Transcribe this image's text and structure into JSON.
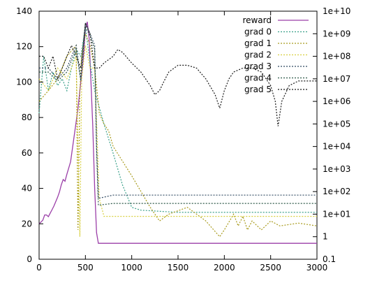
{
  "chart_data": {
    "type": "line",
    "grid": false,
    "legend_position": "top-right",
    "x_axis": {
      "range": [
        0,
        3000
      ],
      "ticks": [
        0,
        500,
        1000,
        1500,
        2000,
        2500,
        3000
      ],
      "tick_labels": [
        "0",
        "500",
        "1000",
        "1500",
        "2000",
        "2500",
        "3000"
      ]
    },
    "y_left": {
      "range": [
        0,
        140
      ],
      "ticks": [
        0,
        20,
        40,
        60,
        80,
        100,
        120,
        140
      ],
      "tick_labels": [
        "0",
        "20",
        "40",
        "60",
        "80",
        "100",
        "120",
        "140"
      ]
    },
    "y_right": {
      "scale": "log",
      "range": [
        0.1,
        10000000000
      ],
      "ticks": [
        0.1,
        1,
        10,
        100,
        1000,
        10000,
        100000,
        1000000,
        10000000,
        100000000,
        1000000000,
        10000000000
      ],
      "tick_labels": [
        "0.1",
        "1",
        "1e+01",
        "1e+02",
        "1e+03",
        "1e+04",
        "1e+05",
        "1e+06",
        "1e+07",
        "1e+08",
        "1e+09",
        "1e+10"
      ]
    },
    "series": [
      {
        "name": "reward",
        "axis": "left",
        "color": "#9b3fa8",
        "dash": "",
        "x": [
          0,
          40,
          60,
          80,
          100,
          120,
          140,
          160,
          200,
          220,
          240,
          260,
          280,
          300,
          340,
          380,
          420,
          460,
          480,
          500,
          520,
          540,
          560,
          580,
          600,
          620,
          640,
          700,
          800,
          1000,
          1500,
          2000,
          2500,
          3000
        ],
        "y": [
          20,
          22,
          25,
          25,
          24,
          26,
          28,
          30,
          35,
          38,
          42,
          45,
          44,
          48,
          55,
          70,
          85,
          105,
          115,
          130,
          134,
          125,
          100,
          75,
          40,
          15,
          9,
          9,
          9,
          9,
          9,
          9,
          9,
          9
        ]
      },
      {
        "name": "grad 0",
        "axis": "right",
        "color": "#3aa08a",
        "dash": "2,2",
        "x": [
          0,
          50,
          100,
          150,
          200,
          250,
          300,
          350,
          400,
          450,
          500,
          550,
          600,
          700,
          800,
          900,
          1000,
          1100,
          1500,
          2000,
          2500,
          3000
        ],
        "y": [
          300000,
          100000000,
          3000000,
          20000000,
          5000000,
          10000000,
          3000000,
          30000000,
          200000000,
          100000000,
          2000000000,
          50000000,
          3000000,
          100000,
          5000,
          200,
          20,
          15,
          12,
          12,
          12,
          12
        ]
      },
      {
        "name": "grad 1",
        "axis": "right",
        "color": "#a89a1c",
        "dash": "2,2",
        "x": [
          0,
          100,
          200,
          300,
          400,
          420,
          440,
          460,
          500,
          550,
          600,
          650,
          700,
          750,
          800,
          1000,
          1200,
          1300,
          1400,
          1600,
          1800,
          1950,
          2000,
          2100,
          2150,
          2200,
          2250,
          2300,
          2400,
          2500,
          2600,
          2800,
          3000
        ],
        "y": [
          1000000,
          3000000,
          10000000,
          100000000,
          300000000,
          2,
          3000000,
          100000000,
          1000000000,
          300000000,
          30000000,
          300000,
          100000,
          50000,
          10000,
          500,
          20,
          5,
          10,
          20,
          5,
          1,
          2,
          10,
          3,
          8,
          2,
          5,
          2,
          5,
          3,
          4,
          3
        ]
      },
      {
        "name": "grad 2",
        "axis": "right",
        "color": "#d8d040",
        "dash": "2,2",
        "x": [
          0,
          100,
          200,
          300,
          400,
          440,
          460,
          500,
          550,
          600,
          650,
          700,
          800,
          1000,
          1500,
          2000,
          2500,
          3000
        ],
        "y": [
          10000000,
          3000000,
          30000000,
          10000000,
          100000000,
          1,
          10000000,
          300000000,
          30000000,
          30000000,
          50,
          8,
          8,
          8,
          8,
          8,
          8,
          8
        ]
      },
      {
        "name": "grad 3",
        "axis": "right",
        "color": "#2e4860",
        "dash": "2,2",
        "x": [
          0,
          100,
          200,
          300,
          400,
          450,
          500,
          550,
          600,
          620,
          640,
          800,
          1000,
          1500,
          2000,
          2500,
          3000
        ],
        "y": [
          30000000,
          30000000,
          10000000,
          30000000,
          300000000,
          10000000,
          3000000000,
          1000000000,
          300000000,
          10000,
          50,
          70,
          70,
          70,
          70,
          70,
          70
        ]
      },
      {
        "name": "grad 4",
        "axis": "right",
        "color": "#2e5848",
        "dash": "2,2",
        "x": [
          0,
          100,
          200,
          300,
          400,
          450,
          500,
          550,
          600,
          620,
          640,
          800,
          1000,
          1500,
          2000,
          2500,
          3000
        ],
        "y": [
          20000000,
          20000000,
          8000000,
          20000000,
          200000000,
          8000000,
          2000000000,
          800000000,
          200000000,
          8000,
          25,
          30,
          30,
          30,
          30,
          30,
          30
        ]
      },
      {
        "name": "grad 5",
        "axis": "right",
        "color": "#1a1a1a",
        "dash": "2,2",
        "x": [
          0,
          50,
          100,
          150,
          200,
          250,
          300,
          350,
          400,
          450,
          500,
          550,
          600,
          650,
          700,
          800,
          850,
          900,
          1000,
          1100,
          1200,
          1250,
          1300,
          1350,
          1400,
          1500,
          1600,
          1700,
          1800,
          1900,
          1950,
          2000,
          2050,
          2100,
          2200,
          2300,
          2400,
          2500,
          2550,
          2580,
          2620,
          2700,
          2800,
          2900,
          3000
        ],
        "y": [
          100000000,
          100000000,
          30000000,
          100000000,
          10000000,
          30000000,
          100000000,
          300000000,
          100000000,
          30000000,
          3000000000,
          1000000000,
          30000000,
          30000000,
          50000000,
          100000000,
          200000000,
          150000000,
          50000000,
          20000000,
          5000000,
          2000000,
          3000000,
          8000000,
          20000000,
          40000000,
          40000000,
          30000000,
          10000000,
          2000000,
          500000,
          3000000,
          10000000,
          20000000,
          30000000,
          30000000,
          20000000,
          5000000,
          1000000,
          80000,
          1000000,
          5000000,
          8000000,
          8000000,
          8000000
        ]
      }
    ]
  }
}
